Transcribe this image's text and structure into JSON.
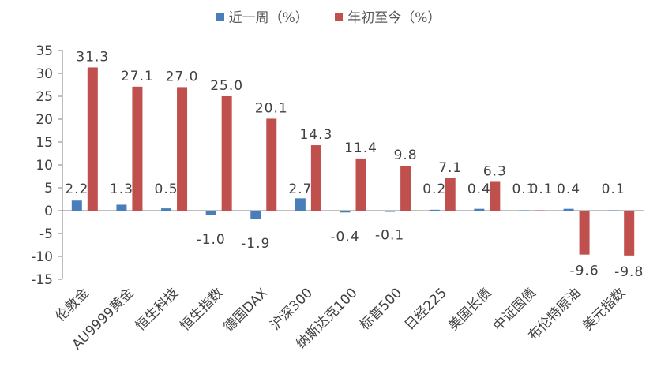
{
  "chart_data": {
    "type": "bar",
    "title": "",
    "xlabel": "",
    "ylabel": "",
    "ylim": [
      -15,
      35
    ],
    "yticks": [
      -15,
      -10,
      -5,
      0,
      5,
      10,
      15,
      20,
      25,
      30,
      35
    ],
    "grid": false,
    "legend_position": "top",
    "categories": [
      "伦敦金",
      "AU9999黄金",
      "恒生科技",
      "恒生指数",
      "德国DAX",
      "沪深300",
      "纳斯达克100",
      "标普500",
      "日经225",
      "美国长债",
      "中证国债",
      "布伦特原油",
      "美元指数"
    ],
    "series": [
      {
        "name": "近一周（%）",
        "color": "#4a7ebb",
        "values": [
          2.2,
          1.3,
          0.5,
          -1.0,
          -1.9,
          2.7,
          -0.4,
          -0.1,
          0.2,
          0.4,
          0.1,
          0.4,
          0.1
        ],
        "labels": [
          "2.2",
          "1.3",
          "0.5",
          "-1.0",
          "-1.9",
          "2.7",
          "-0.4",
          "-0.1",
          "0.2",
          "0.4",
          "0.1",
          "0.4",
          "0.1"
        ]
      },
      {
        "name": "年初至今（%）",
        "color": "#c0504d",
        "values": [
          31.3,
          27.1,
          27.0,
          25.0,
          20.1,
          14.3,
          11.4,
          9.8,
          7.1,
          6.3,
          0.1,
          -9.6,
          -9.8
        ],
        "labels": [
          "31.3",
          "27.1",
          "27.0",
          "25.0",
          "20.1",
          "14.3",
          "11.4",
          "9.8",
          "7.1",
          "6.3",
          "0.1",
          "-9.6",
          "-9.8"
        ]
      }
    ]
  }
}
